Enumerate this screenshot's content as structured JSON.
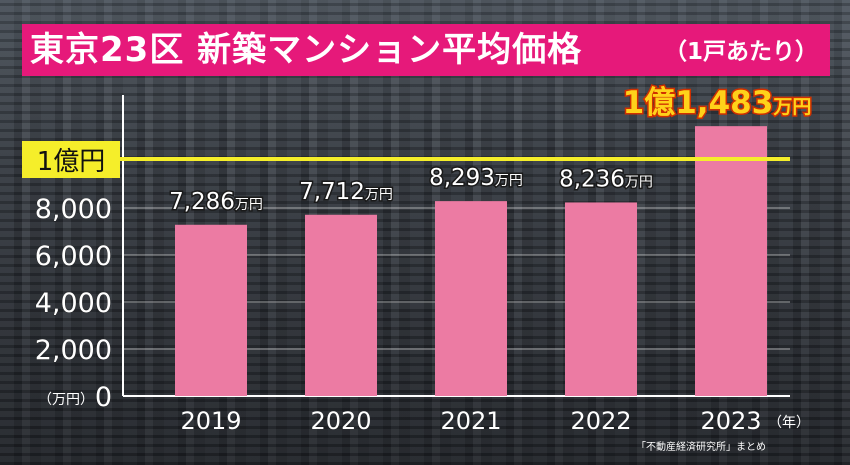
{
  "header": {
    "title": "東京23区 新築マンション平均価格",
    "subtitle": "（1戸あたり）"
  },
  "source": "「不動産経済研究所」まとめ",
  "chart_data": {
    "type": "bar",
    "categories": [
      "2019",
      "2020",
      "2021",
      "2022",
      "2023"
    ],
    "values": [
      7286,
      7712,
      8293,
      8236,
      11483
    ],
    "data_labels": [
      {
        "num": "7,286",
        "unit": "万円"
      },
      {
        "num": "7,712",
        "unit": "万円"
      },
      {
        "num": "8,293",
        "unit": "万円"
      },
      {
        "num": "8,236",
        "unit": "万円"
      },
      {
        "num": "1億1,483",
        "unit": "万円"
      }
    ],
    "yticks": [
      0,
      2000,
      4000,
      6000,
      8000
    ],
    "ytick_labels": [
      "0",
      "2,000",
      "4,000",
      "6,000",
      "8,000"
    ],
    "ylabel": "（万円）",
    "xlabel": "（年）",
    "ylim": [
      0,
      12500
    ],
    "reference_line": {
      "value": 10000,
      "label": "1億円"
    },
    "grid": true,
    "colors": {
      "bar": "#ec7ba3",
      "title_bg": "#e6197a",
      "reference_line": "#f5ee2a",
      "highlight_label": "#ffd21a"
    }
  }
}
